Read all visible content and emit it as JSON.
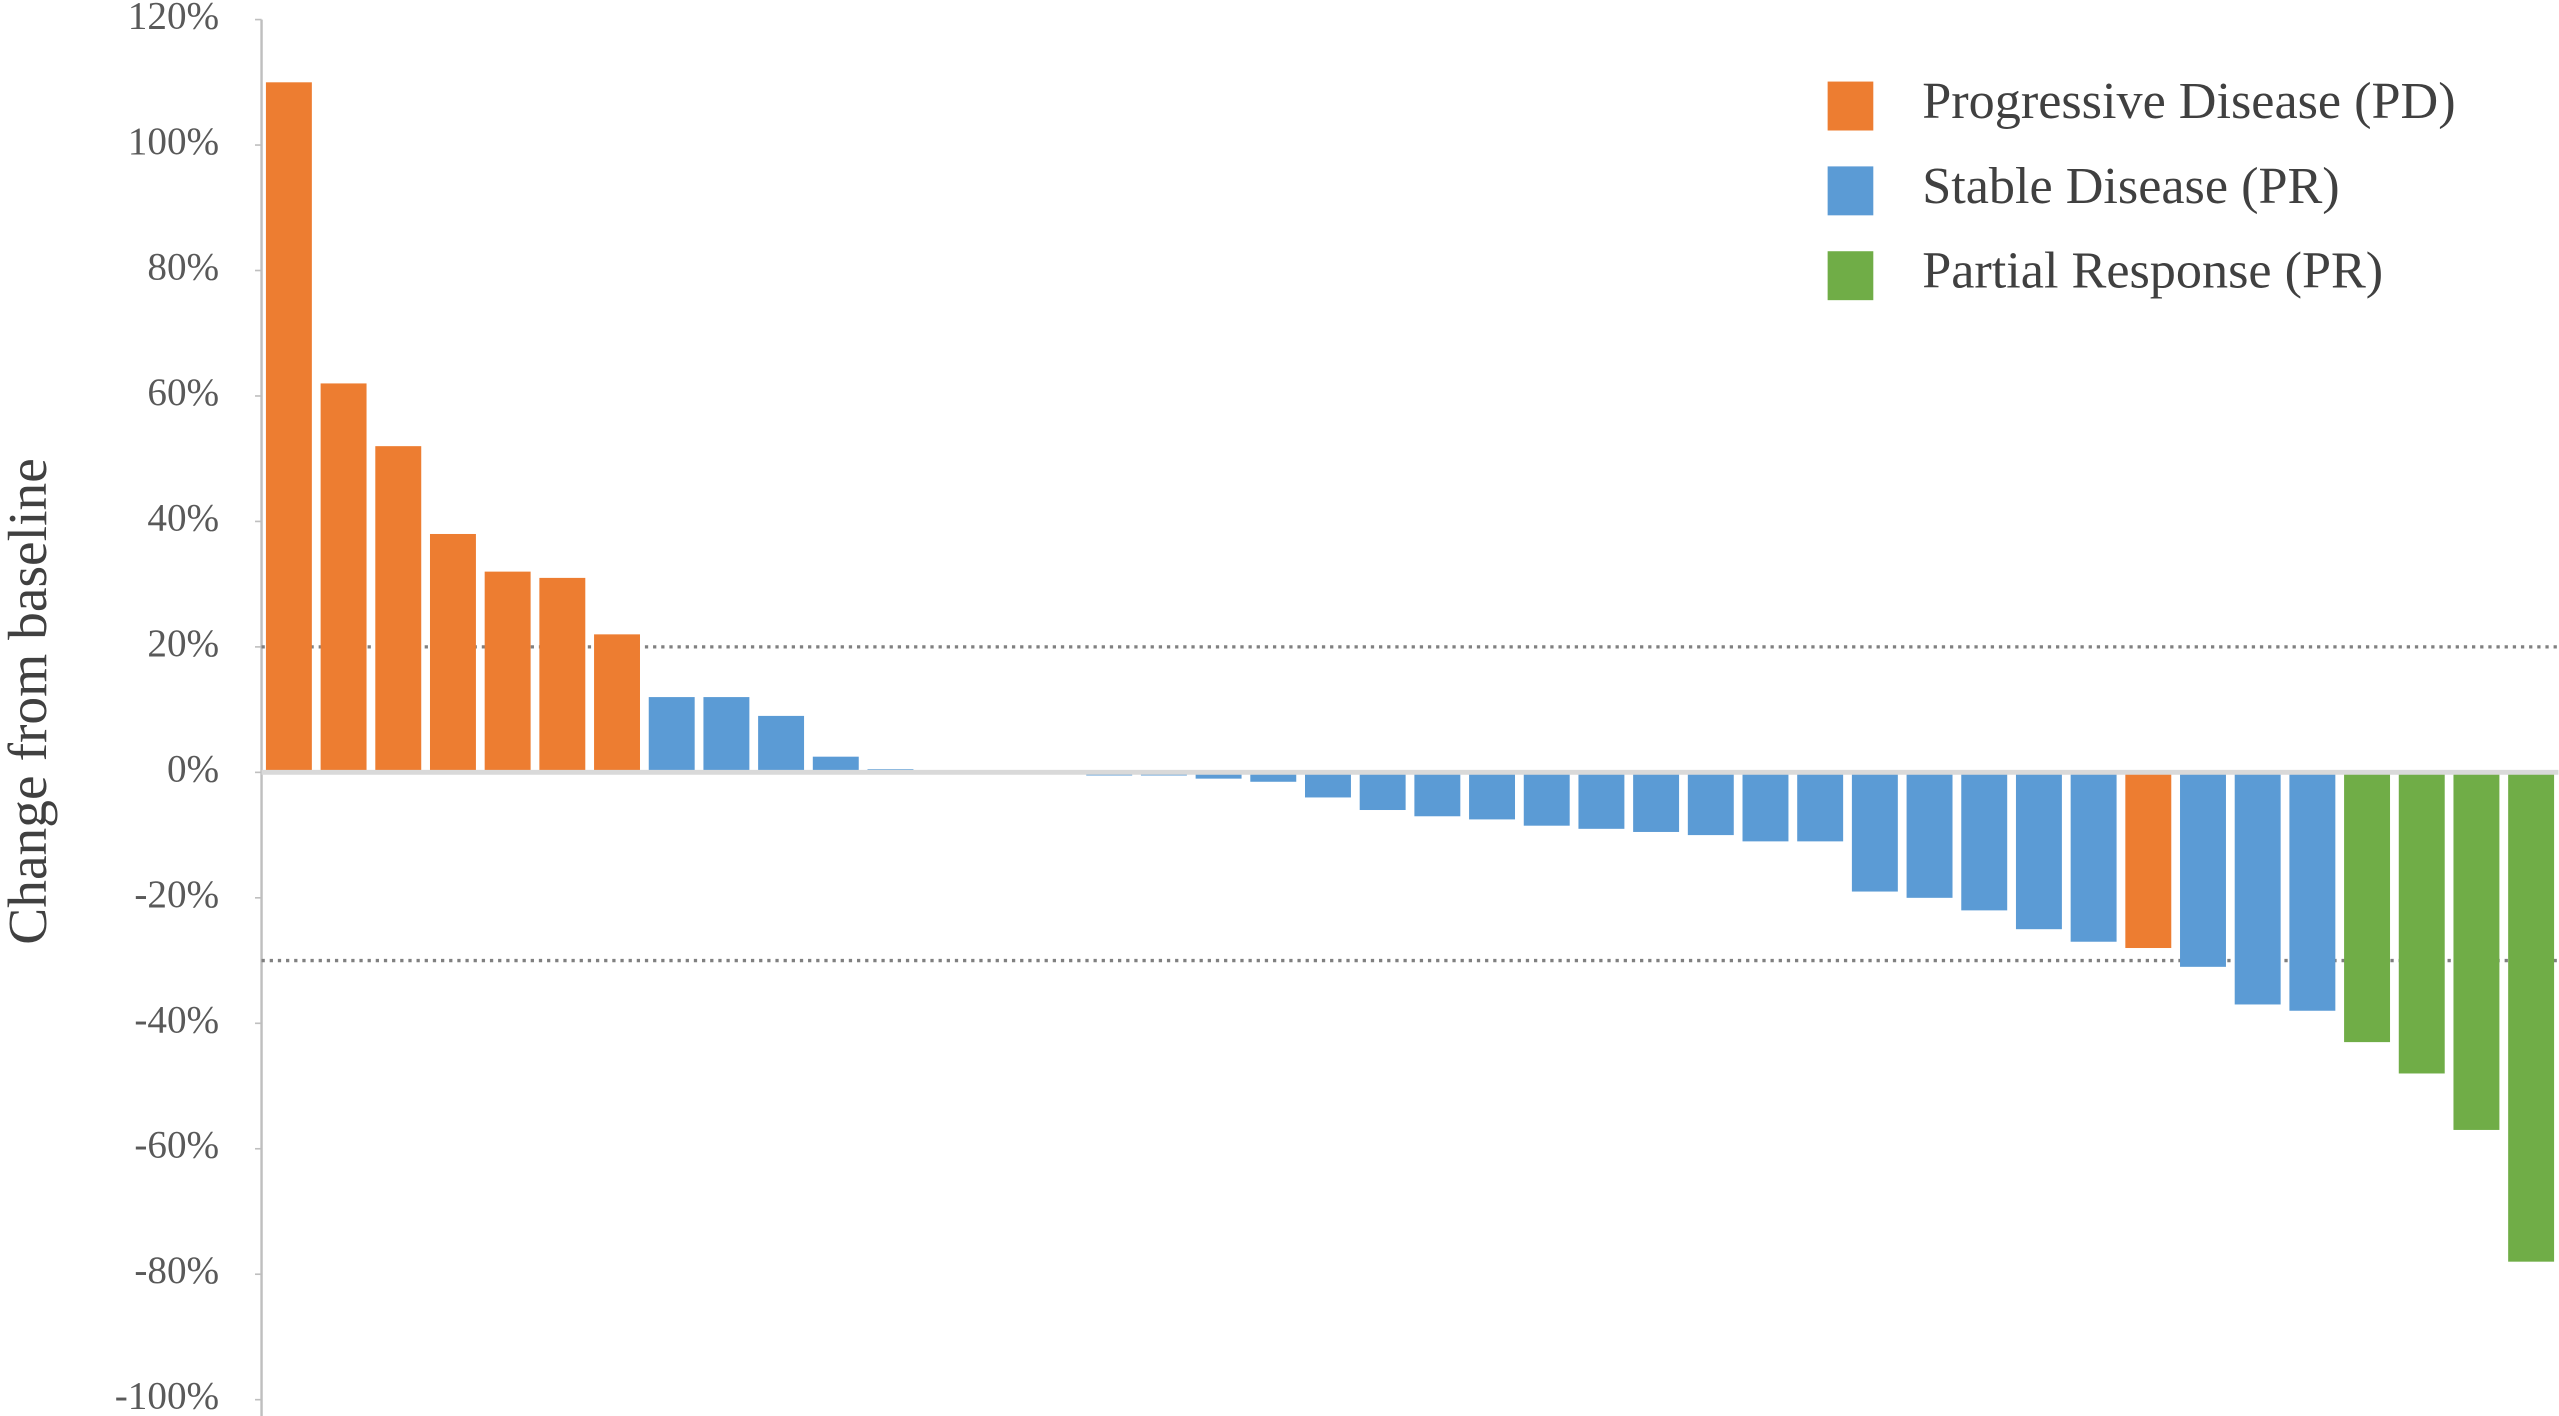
{
  "chart_data": {
    "type": "bar",
    "y_label": "Change from baseline",
    "categories": [
      null,
      null,
      null,
      null,
      null,
      null,
      null,
      null,
      null,
      null,
      null,
      null,
      null,
      null,
      null,
      null,
      null,
      null,
      null,
      null,
      null,
      null,
      null,
      null,
      null,
      null,
      null,
      null,
      null,
      null,
      null,
      null,
      null,
      null,
      null,
      null,
      null,
      null,
      null,
      null,
      null,
      null
    ],
    "series": [
      {
        "name": "Progressive Disease (PD)",
        "color": "#ed7d31",
        "values": [
          110,
          62,
          52,
          38,
          32,
          31,
          22,
          null,
          null,
          null,
          null,
          null,
          null,
          null,
          null,
          null,
          null,
          null,
          null,
          null,
          null,
          null,
          null,
          null,
          null,
          null,
          null,
          null,
          null,
          null,
          null,
          null,
          null,
          null,
          -28,
          null,
          null,
          null,
          null,
          null,
          null,
          null
        ]
      },
      {
        "name": "Stable Disease (PR)",
        "color": "#5b9bd5",
        "values": [
          null,
          null,
          null,
          null,
          null,
          null,
          null,
          12,
          12,
          9,
          2.5,
          0.5,
          0,
          0,
          0,
          -0.5,
          -0.5,
          -1,
          -1.5,
          -4,
          -6,
          -7,
          -7.5,
          -8.5,
          -9,
          -9.5,
          -10,
          -11,
          -11,
          -19,
          -20,
          -22,
          -25,
          -27,
          null,
          -31,
          -37,
          -38,
          null,
          null,
          null,
          null
        ]
      },
      {
        "name": "Partial Response (PR)",
        "color": "#70ad47",
        "values": [
          null,
          null,
          null,
          null,
          null,
          null,
          null,
          null,
          null,
          null,
          null,
          null,
          null,
          null,
          null,
          null,
          null,
          null,
          null,
          null,
          null,
          null,
          null,
          null,
          null,
          null,
          null,
          null,
          null,
          null,
          null,
          null,
          null,
          null,
          null,
          null,
          null,
          null,
          -43,
          -48,
          -57,
          -78
        ]
      }
    ],
    "ylim": [
      -100,
      120
    ],
    "yticks": [
      {
        "value": -100,
        "label": "-100%"
      },
      {
        "value": -80,
        "label": "-80%"
      },
      {
        "value": -60,
        "label": "-60%"
      },
      {
        "value": -40,
        "label": "-40%"
      },
      {
        "value": -20,
        "label": "-20%"
      },
      {
        "value": 0,
        "label": "0%"
      },
      {
        "value": 20,
        "label": "20%"
      },
      {
        "value": 40,
        "label": "40%"
      },
      {
        "value": 60,
        "label": "60%"
      },
      {
        "value": 80,
        "label": "80%"
      },
      {
        "value": 100,
        "label": "100%"
      },
      {
        "value": 120,
        "label": "120%"
      }
    ],
    "reference_lines": [
      20,
      -30
    ],
    "legend": "top-right"
  }
}
